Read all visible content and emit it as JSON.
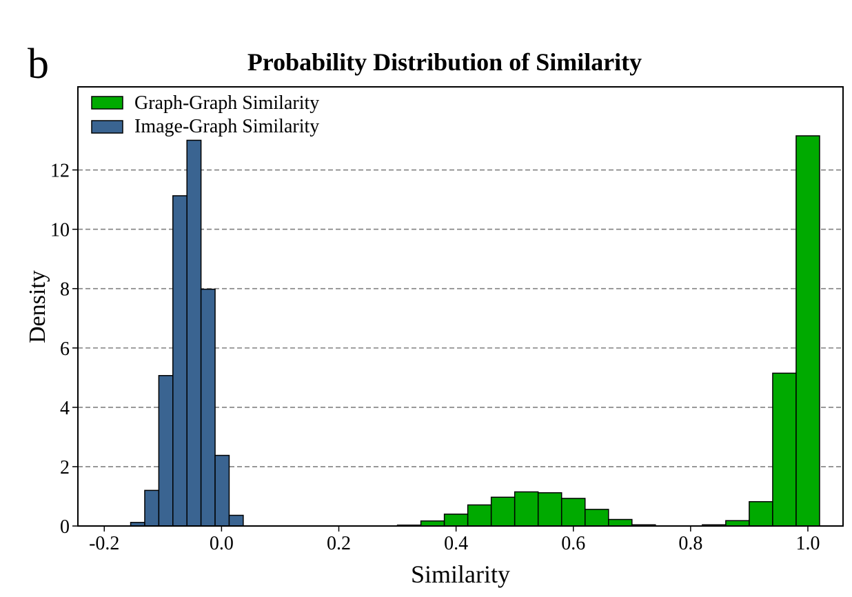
{
  "panel_label": "b",
  "chart_data": {
    "type": "histogram",
    "title": "Probability Distribution of Similarity",
    "xlabel": "Similarity",
    "ylabel": "Density",
    "xlim": [
      -0.245,
      1.06
    ],
    "ylim": [
      0,
      14.8
    ],
    "x_ticks": [
      "-0.2",
      "0.0",
      "0.2",
      "0.4",
      "0.6",
      "0.8",
      "1.0"
    ],
    "y_ticks": [
      "0",
      "2",
      "4",
      "6",
      "8",
      "10",
      "12"
    ],
    "grid": "horizontal dashed",
    "legend_position": "top-left",
    "series": [
      {
        "name": "Graph-Graph Similarity",
        "color": "#00aa00",
        "bins": [
          [
            0.3,
            0.34,
            0.03
          ],
          [
            0.34,
            0.38,
            0.17
          ],
          [
            0.38,
            0.42,
            0.4
          ],
          [
            0.42,
            0.46,
            0.71
          ],
          [
            0.46,
            0.5,
            0.97
          ],
          [
            0.5,
            0.54,
            1.15
          ],
          [
            0.54,
            0.58,
            1.12
          ],
          [
            0.58,
            0.62,
            0.93
          ],
          [
            0.62,
            0.66,
            0.56
          ],
          [
            0.66,
            0.7,
            0.22
          ],
          [
            0.7,
            0.74,
            0.04
          ],
          [
            0.82,
            0.86,
            0.04
          ],
          [
            0.86,
            0.9,
            0.18
          ],
          [
            0.9,
            0.94,
            0.82
          ],
          [
            0.94,
            0.98,
            5.15
          ],
          [
            0.98,
            1.02,
            13.15
          ]
        ]
      },
      {
        "name": "Image-Graph Similarity",
        "color": "#3a6491",
        "bins": [
          [
            -0.155,
            -0.131,
            0.12
          ],
          [
            -0.131,
            -0.107,
            1.2
          ],
          [
            -0.107,
            -0.083,
            5.07
          ],
          [
            -0.083,
            -0.059,
            11.13
          ],
          [
            -0.059,
            -0.035,
            13.0
          ],
          [
            -0.035,
            -0.011,
            7.98
          ],
          [
            -0.011,
            0.013,
            2.38
          ],
          [
            0.013,
            0.037,
            0.36
          ]
        ]
      }
    ]
  }
}
